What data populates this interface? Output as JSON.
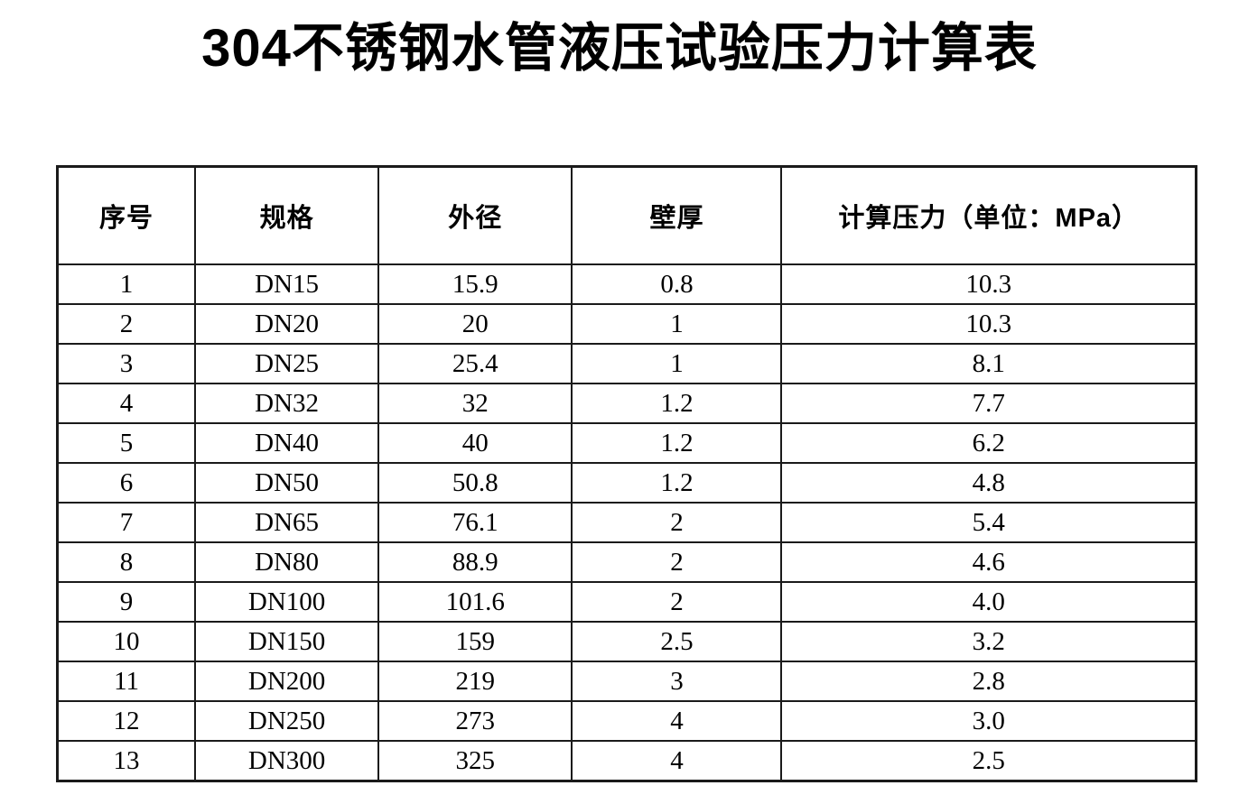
{
  "page": {
    "title": "304不锈钢水管液压试验压力计算表",
    "background_color": "#ffffff",
    "text_color": "#000000"
  },
  "table": {
    "headers": [
      "序号",
      "规格",
      "外径",
      "壁厚",
      "计算压力（单位：MPa）"
    ],
    "rows": [
      [
        "1",
        "DN15",
        "15.9",
        "0.8",
        "10.3"
      ],
      [
        "2",
        "DN20",
        "20",
        "1",
        "10.3"
      ],
      [
        "3",
        "DN25",
        "25.4",
        "1",
        "8.1"
      ],
      [
        "4",
        "DN32",
        "32",
        "1.2",
        "7.7"
      ],
      [
        "5",
        "DN40",
        "40",
        "1.2",
        "6.2"
      ],
      [
        "6",
        "DN50",
        "50.8",
        "1.2",
        "4.8"
      ],
      [
        "7",
        "DN65",
        "76.1",
        "2",
        "5.4"
      ],
      [
        "8",
        "DN80",
        "88.9",
        "2",
        "4.6"
      ],
      [
        "9",
        "DN100",
        "101.6",
        "2",
        "4.0"
      ],
      [
        "10",
        "DN150",
        "159",
        "2.5",
        "3.2"
      ],
      [
        "11",
        "DN200",
        "219",
        "3",
        "2.8"
      ],
      [
        "12",
        "DN250",
        "273",
        "4",
        "3.0"
      ],
      [
        "13",
        "DN300",
        "325",
        "4",
        "2.5"
      ]
    ]
  },
  "chart_data": {
    "type": "table",
    "title": "304不锈钢水管液压试验压力计算表",
    "columns": [
      "序号",
      "规格",
      "外径",
      "壁厚",
      "计算压力（单位：MPa）"
    ],
    "rows": [
      [
        1,
        "DN15",
        15.9,
        0.8,
        10.3
      ],
      [
        2,
        "DN20",
        20,
        1,
        10.3
      ],
      [
        3,
        "DN25",
        25.4,
        1,
        8.1
      ],
      [
        4,
        "DN32",
        32,
        1.2,
        7.7
      ],
      [
        5,
        "DN40",
        40,
        1.2,
        6.2
      ],
      [
        6,
        "DN50",
        50.8,
        1.2,
        4.8
      ],
      [
        7,
        "DN65",
        76.1,
        2,
        5.4
      ],
      [
        8,
        "DN80",
        88.9,
        2,
        4.6
      ],
      [
        9,
        "DN100",
        101.6,
        2,
        4.0
      ],
      [
        10,
        "DN150",
        159,
        2.5,
        3.2
      ],
      [
        11,
        "DN200",
        219,
        3,
        2.8
      ],
      [
        12,
        "DN250",
        273,
        4,
        3.0
      ],
      [
        13,
        "DN300",
        325,
        4,
        2.5
      ]
    ]
  }
}
